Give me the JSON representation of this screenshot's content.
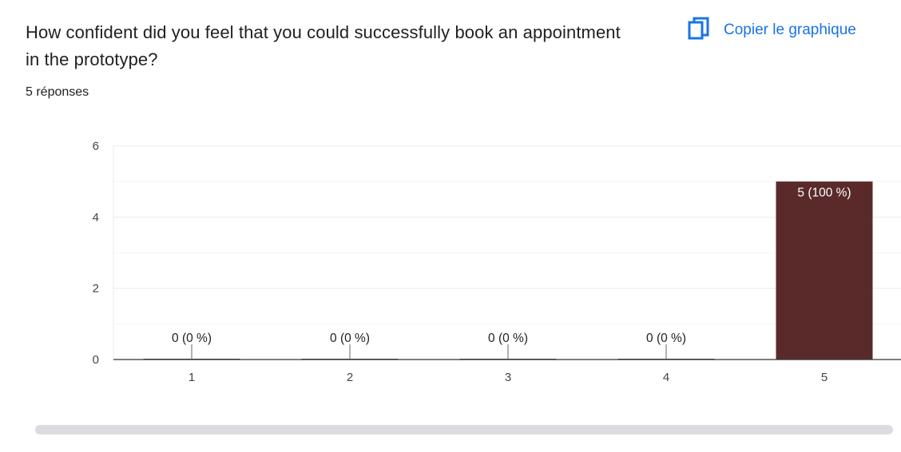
{
  "question": {
    "title": "How confident did you feel that you could successfully book an appointment in the prototype?",
    "responses": "5 réponses"
  },
  "toolbar": {
    "copy_label": "Copier le graphique",
    "copy_icon": "copy-icon"
  },
  "colors": {
    "accent": "#1a73e8",
    "bar": "#5a2a2a",
    "axis": "#333333",
    "grid": "#ebebeb",
    "grid_minor": "#f3f3f3"
  },
  "chart_data": {
    "type": "bar",
    "categories": [
      "1",
      "2",
      "3",
      "4",
      "5"
    ],
    "values": [
      0,
      0,
      0,
      0,
      5
    ],
    "labels": [
      "0 (0 %)",
      "0 (0 %)",
      "0 (0 %)",
      "0 (0 %)",
      "5 (100 %)"
    ],
    "title": "",
    "xlabel": "",
    "ylabel": "",
    "ylim": [
      0,
      6
    ],
    "yticks": [
      0,
      2,
      4,
      6
    ],
    "grid": true,
    "legend": "none"
  }
}
